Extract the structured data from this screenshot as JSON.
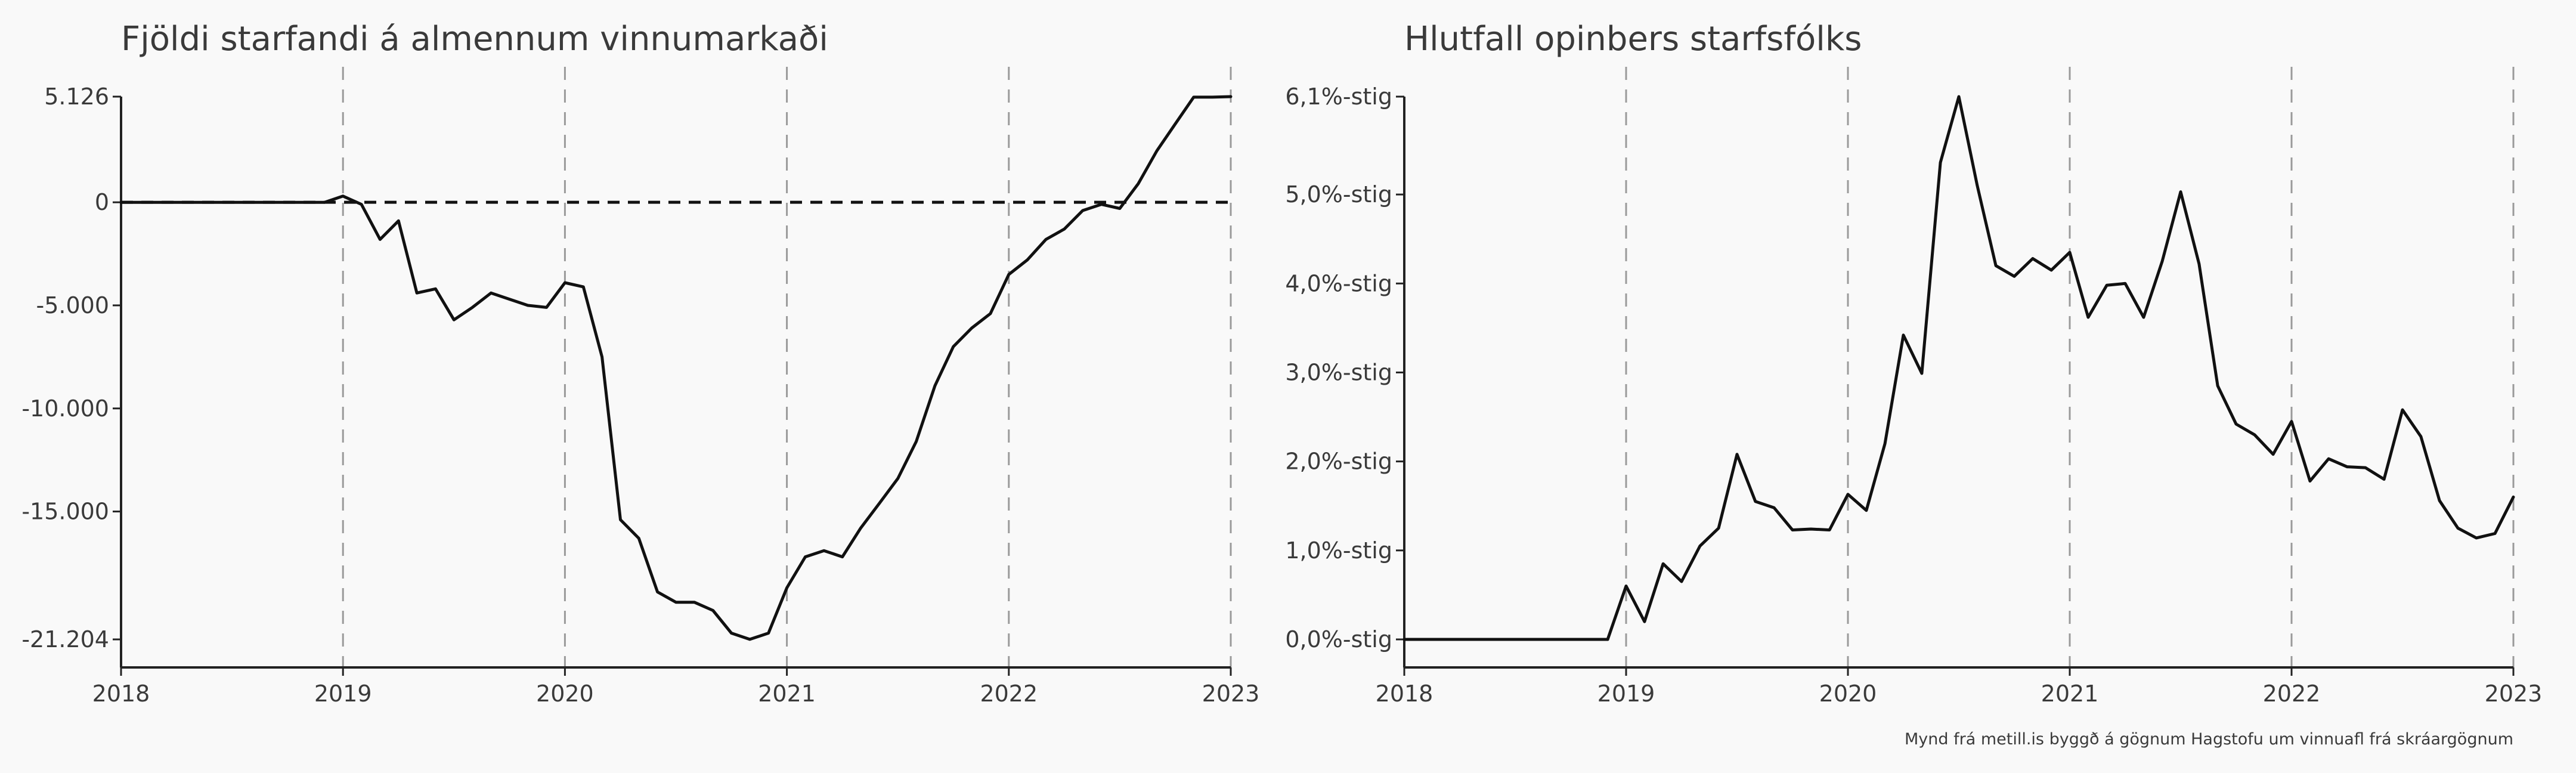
{
  "chart_data": [
    {
      "type": "line",
      "title": "Fjöldi starfandi á almennum vinnumarkaði",
      "x_ticks": [
        "2018",
        "2019",
        "2020",
        "2021",
        "2022",
        "2023"
      ],
      "y_ticks": [
        "5.126",
        "0",
        "-5.000",
        "-10.000",
        "-15.000",
        "-21.204"
      ],
      "y_tick_values": [
        5126,
        0,
        -5000,
        -10000,
        -15000,
        -21204
      ],
      "xlim": [
        2018.0,
        2023.0
      ],
      "ylim": [
        -21204,
        5126
      ],
      "zero_line": true,
      "vertical_gridlines": "dashed",
      "series": [
        {
          "x": [
            2018.0,
            2018.083,
            2018.167,
            2018.25,
            2018.333,
            2018.417,
            2018.5,
            2018.583,
            2018.667,
            2018.75,
            2018.833,
            2018.917,
            2019.0,
            2019.083,
            2019.167,
            2019.25,
            2019.333,
            2019.417,
            2019.5,
            2019.583,
            2019.667,
            2019.75,
            2019.833,
            2019.917,
            2020.0,
            2020.083,
            2020.167,
            2020.25,
            2020.333,
            2020.417,
            2020.5,
            2020.583,
            2020.667,
            2020.75,
            2020.833,
            2020.917,
            2021.0,
            2021.083,
            2021.167,
            2021.25,
            2021.333,
            2021.417,
            2021.5,
            2021.583,
            2021.667,
            2021.75,
            2021.833,
            2021.917,
            2022.0,
            2022.083,
            2022.167,
            2022.25,
            2022.333,
            2022.417,
            2022.5,
            2022.583,
            2022.667,
            2022.75,
            2022.833,
            2022.917,
            2023.0
          ],
          "values": [
            0,
            0,
            0,
            0,
            0,
            0,
            0,
            0,
            0,
            0,
            0,
            0,
            300,
            -100,
            -1800,
            -900,
            -4400,
            -4200,
            -5700,
            -5100,
            -4400,
            -4700,
            -5000,
            -5100,
            -3900,
            -4100,
            -7500,
            -15400,
            -16300,
            -18900,
            -19400,
            -19400,
            -19800,
            -20900,
            -21200,
            -20900,
            -18700,
            -17200,
            -16900,
            -17200,
            -15800,
            -14600,
            -13400,
            -11600,
            -8900,
            -7000,
            -6100,
            -5400,
            -3500,
            -2800,
            -1800,
            -1300,
            -400,
            -100,
            -300,
            900,
            2500,
            3800,
            5100,
            5100,
            5126
          ]
        }
      ]
    },
    {
      "type": "line",
      "title": "Hlutfall opinbers starfsfólks",
      "x_ticks": [
        "2018",
        "2019",
        "2020",
        "2021",
        "2022",
        "2023"
      ],
      "y_ticks": [
        "6,1%-stig",
        "5,0%-stig",
        "4,0%-stig",
        "3,0%-stig",
        "2,0%-stig",
        "1,0%-stig",
        "0,0%-stig"
      ],
      "y_tick_values": [
        6.1,
        5.0,
        4.0,
        3.0,
        2.0,
        1.0,
        0.0
      ],
      "xlim": [
        2018.0,
        2023.0
      ],
      "ylim": [
        0.0,
        6.1
      ],
      "vertical_gridlines": "dashed",
      "series": [
        {
          "x": [
            2018.0,
            2018.083,
            2018.167,
            2018.25,
            2018.333,
            2018.417,
            2018.5,
            2018.583,
            2018.667,
            2018.75,
            2018.833,
            2018.917,
            2019.0,
            2019.083,
            2019.167,
            2019.25,
            2019.333,
            2019.417,
            2019.5,
            2019.583,
            2019.667,
            2019.75,
            2019.833,
            2019.917,
            2020.0,
            2020.083,
            2020.167,
            2020.25,
            2020.333,
            2020.417,
            2020.5,
            2020.583,
            2020.667,
            2020.75,
            2020.833,
            2020.917,
            2021.0,
            2021.083,
            2021.167,
            2021.25,
            2021.333,
            2021.417,
            2021.5,
            2021.583,
            2021.667,
            2021.75,
            2021.833,
            2021.917,
            2022.0,
            2022.083,
            2022.167,
            2022.25,
            2022.333,
            2022.417,
            2022.5,
            2022.583,
            2022.667,
            2022.75,
            2022.833,
            2022.917,
            2023.0
          ],
          "values": [
            0.0,
            0.0,
            0.0,
            0.0,
            0.0,
            0.0,
            0.0,
            0.0,
            0.0,
            0.0,
            0.0,
            0.0,
            0.6,
            0.2,
            0.85,
            0.65,
            1.05,
            1.25,
            2.08,
            1.55,
            1.48,
            1.23,
            1.24,
            1.23,
            1.63,
            1.45,
            2.2,
            3.42,
            2.99,
            5.36,
            6.1,
            5.1,
            4.2,
            4.08,
            4.28,
            4.15,
            4.35,
            3.62,
            3.98,
            4.0,
            3.62,
            4.25,
            5.03,
            4.22,
            2.85,
            2.42,
            2.3,
            2.08,
            2.45,
            1.78,
            2.03,
            1.94,
            1.93,
            1.8,
            2.58,
            2.28,
            1.56,
            1.25,
            1.14,
            1.19,
            1.6
          ]
        }
      ]
    }
  ],
  "caption": "Mynd frá metill.is byggð á gögnum Hagstofu um vinnuafl frá skráargögnum"
}
